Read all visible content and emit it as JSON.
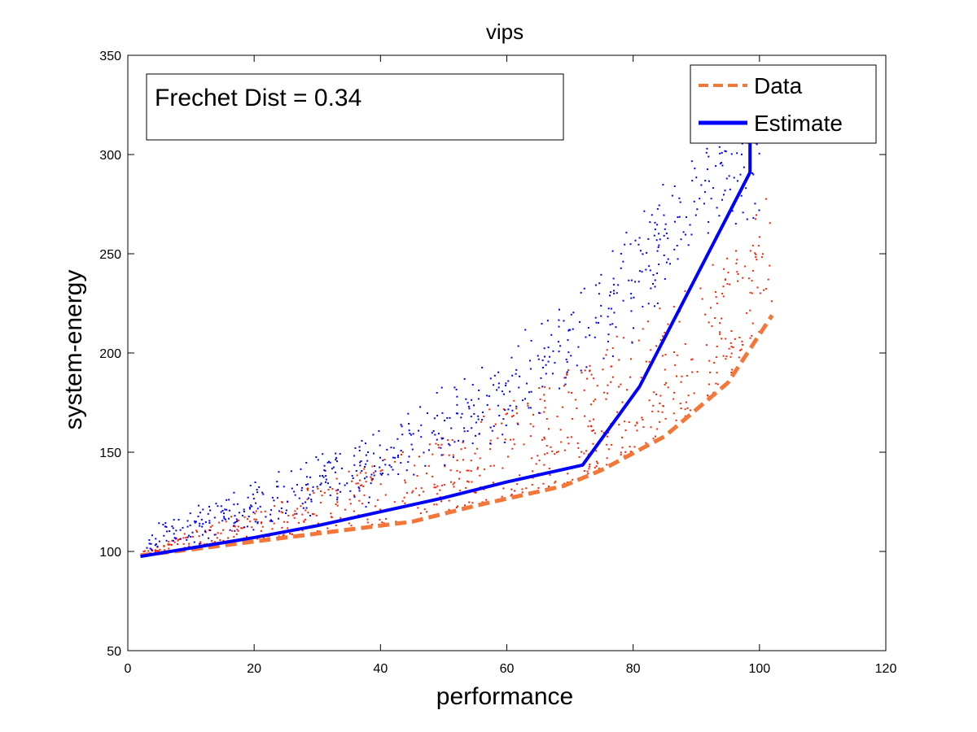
{
  "chart_data": {
    "type": "scatter",
    "title": "vips",
    "xlabel": "performance",
    "ylabel": "system-energy",
    "xlim": [
      0,
      120
    ],
    "ylim": [
      50,
      350
    ],
    "xticks": [
      "0",
      "20",
      "40",
      "60",
      "80",
      "100",
      "120"
    ],
    "yticks": [
      "50",
      "100",
      "150",
      "200",
      "250",
      "300",
      "350"
    ],
    "grid": false,
    "legend_position": "top-right",
    "annotation": "Frechet Dist = 0.34",
    "colors": {
      "data_line": "#f4773a",
      "estimate_line": "#0000ff",
      "data_points": "#ff2000",
      "estimate_points": "#0000ff"
    },
    "series": [
      {
        "name": "Data",
        "kind": "line",
        "style": "dashed",
        "x": [
          2,
          10,
          20,
          30,
          45,
          55,
          69,
          75,
          85,
          95,
          102
        ],
        "y": [
          98,
          101,
          105,
          109,
          115,
          123,
          133,
          141,
          158,
          185,
          219
        ]
      },
      {
        "name": "Estimate",
        "kind": "line",
        "style": "solid",
        "x": [
          2,
          20,
          30,
          40,
          50,
          60,
          72,
          81,
          98.5,
          98.5
        ],
        "y": [
          97.5,
          107,
          113,
          120,
          127,
          135,
          143.5,
          183,
          291,
          310
        ]
      },
      {
        "kind": "scatter",
        "color_key": "data_points",
        "band": {
          "x_from": 2,
          "x_to": 102,
          "lower_curve": "Data",
          "spread": [
            0,
            65
          ],
          "count": 700
        }
      },
      {
        "kind": "scatter",
        "color_key": "estimate_points",
        "band": {
          "x_from": 3,
          "x_to": 100,
          "center": [
            [
              3,
              103
            ],
            [
              20,
              122
            ],
            [
              40,
              145
            ],
            [
              60,
              180
            ],
            [
              75,
              215
            ],
            [
              90,
              280
            ],
            [
              97,
              300
            ]
          ],
          "spread": 18,
          "count": 650
        }
      }
    ]
  }
}
